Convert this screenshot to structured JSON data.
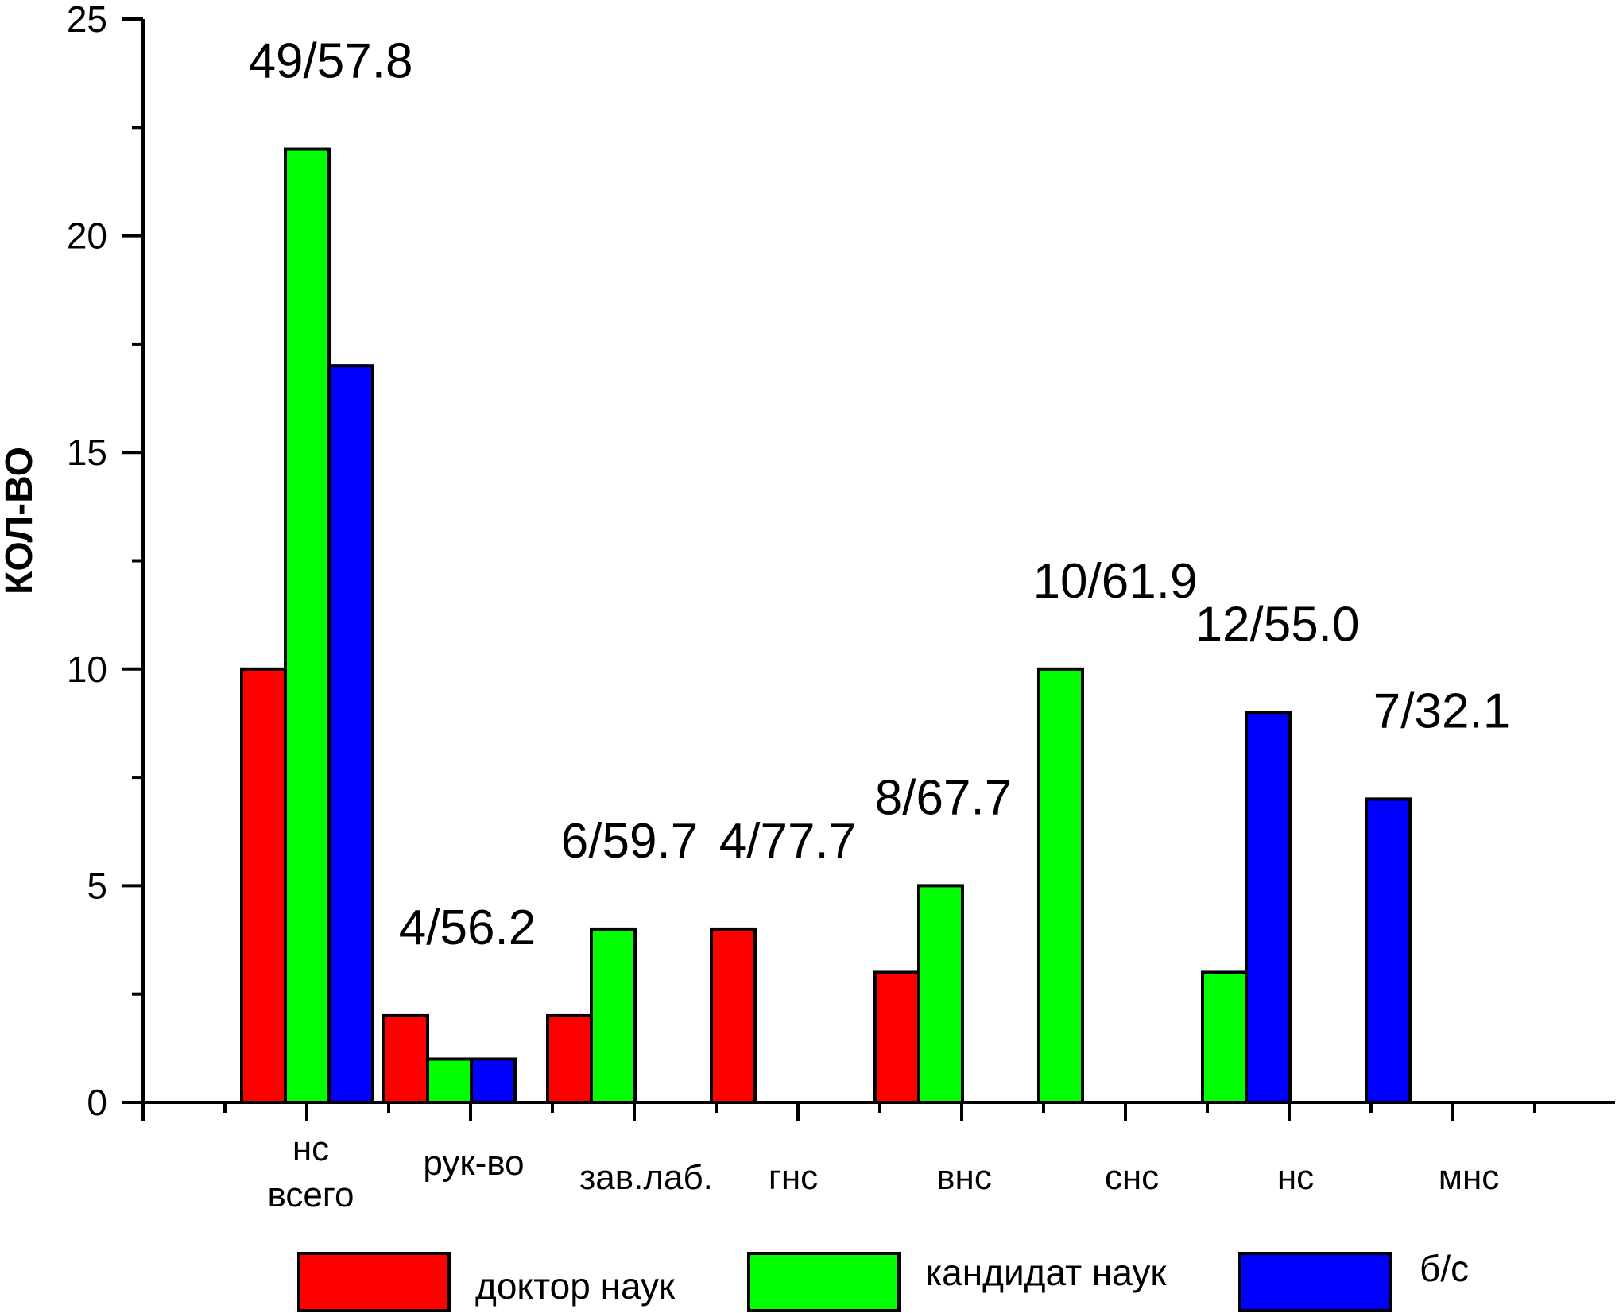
{
  "chart_data": {
    "type": "bar",
    "ylabel": "КОЛ-ВО",
    "xlabel": "",
    "ylim": [
      0,
      25
    ],
    "yticks": [
      0,
      5,
      10,
      15,
      20,
      25
    ],
    "grid": false,
    "legend_position": "bottom",
    "categories": [
      [
        "нс",
        "всего"
      ],
      [
        "рук-во"
      ],
      [
        "зав.лаб."
      ],
      [
        "гнс"
      ],
      [
        "внс"
      ],
      [
        "снс"
      ],
      [
        "нс"
      ],
      [
        "мнс"
      ]
    ],
    "series": [
      {
        "name": "доктор наук",
        "color": "#ff0000",
        "values": [
          10,
          2,
          2,
          4,
          3,
          null,
          null,
          null
        ]
      },
      {
        "name": "кандидат наук",
        "color": "#00ff00",
        "values": [
          22,
          1,
          4,
          null,
          5,
          10,
          3,
          null
        ]
      },
      {
        "name": "б/с",
        "color": "#0000ff",
        "values": [
          17,
          1,
          null,
          null,
          null,
          null,
          9,
          7
        ]
      }
    ],
    "annotations": [
      "49/57.8",
      "4/56.2",
      "6/59.7",
      "4/77.7",
      "8/67.7",
      "10/61.9",
      "12/55.0",
      "7/32.1"
    ]
  }
}
